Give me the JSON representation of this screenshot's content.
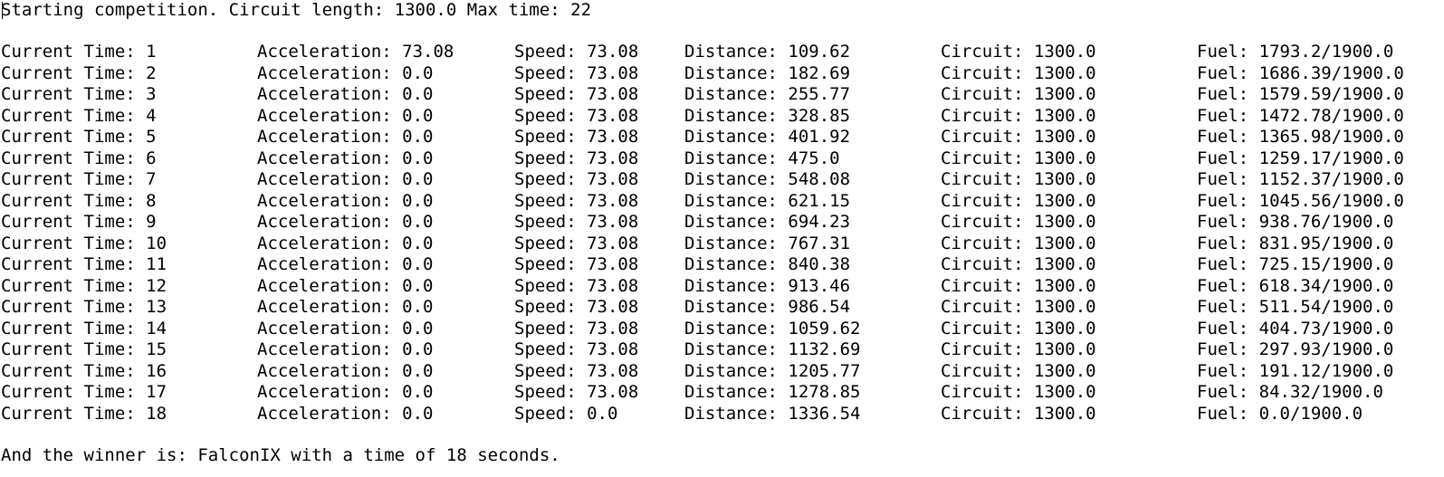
{
  "console": {
    "header": "Starting competition. Circuit length: 1300.0 Max time: 22",
    "footer": "And the winner is: FalconIX with a time of 18 seconds.",
    "rows": [
      {
        "time": "Current Time: 1",
        "acc": "Acceleration: 73.08",
        "speed": "Speed: 73.08",
        "dist": "Distance: 109.62",
        "circ": "Circuit: 1300.0",
        "fuel": "Fuel: 1793.2/1900.0"
      },
      {
        "time": "Current Time: 2",
        "acc": "Acceleration: 0.0",
        "speed": "Speed: 73.08",
        "dist": "Distance: 182.69",
        "circ": "Circuit: 1300.0",
        "fuel": "Fuel: 1686.39/1900.0"
      },
      {
        "time": "Current Time: 3",
        "acc": "Acceleration: 0.0",
        "speed": "Speed: 73.08",
        "dist": "Distance: 255.77",
        "circ": "Circuit: 1300.0",
        "fuel": "Fuel: 1579.59/1900.0"
      },
      {
        "time": "Current Time: 4",
        "acc": "Acceleration: 0.0",
        "speed": "Speed: 73.08",
        "dist": "Distance: 328.85",
        "circ": "Circuit: 1300.0",
        "fuel": "Fuel: 1472.78/1900.0"
      },
      {
        "time": "Current Time: 5",
        "acc": "Acceleration: 0.0",
        "speed": "Speed: 73.08",
        "dist": "Distance: 401.92",
        "circ": "Circuit: 1300.0",
        "fuel": "Fuel: 1365.98/1900.0"
      },
      {
        "time": "Current Time: 6",
        "acc": "Acceleration: 0.0",
        "speed": "Speed: 73.08",
        "dist": "Distance: 475.0",
        "circ": "Circuit: 1300.0",
        "fuel": "Fuel: 1259.17/1900.0"
      },
      {
        "time": "Current Time: 7",
        "acc": "Acceleration: 0.0",
        "speed": "Speed: 73.08",
        "dist": "Distance: 548.08",
        "circ": "Circuit: 1300.0",
        "fuel": "Fuel: 1152.37/1900.0"
      },
      {
        "time": "Current Time: 8",
        "acc": "Acceleration: 0.0",
        "speed": "Speed: 73.08",
        "dist": "Distance: 621.15",
        "circ": "Circuit: 1300.0",
        "fuel": "Fuel: 1045.56/1900.0"
      },
      {
        "time": "Current Time: 9",
        "acc": "Acceleration: 0.0",
        "speed": "Speed: 73.08",
        "dist": "Distance: 694.23",
        "circ": "Circuit: 1300.0",
        "fuel": "Fuel: 938.76/1900.0"
      },
      {
        "time": "Current Time: 10",
        "acc": "Acceleration: 0.0",
        "speed": "Speed: 73.08",
        "dist": "Distance: 767.31",
        "circ": "Circuit: 1300.0",
        "fuel": "Fuel: 831.95/1900.0"
      },
      {
        "time": "Current Time: 11",
        "acc": "Acceleration: 0.0",
        "speed": "Speed: 73.08",
        "dist": "Distance: 840.38",
        "circ": "Circuit: 1300.0",
        "fuel": "Fuel: 725.15/1900.0"
      },
      {
        "time": "Current Time: 12",
        "acc": "Acceleration: 0.0",
        "speed": "Speed: 73.08",
        "dist": "Distance: 913.46",
        "circ": "Circuit: 1300.0",
        "fuel": "Fuel: 618.34/1900.0"
      },
      {
        "time": "Current Time: 13",
        "acc": "Acceleration: 0.0",
        "speed": "Speed: 73.08",
        "dist": "Distance: 986.54",
        "circ": "Circuit: 1300.0",
        "fuel": "Fuel: 511.54/1900.0"
      },
      {
        "time": "Current Time: 14",
        "acc": "Acceleration: 0.0",
        "speed": "Speed: 73.08",
        "dist": "Distance: 1059.62",
        "circ": "Circuit: 1300.0",
        "fuel": "Fuel: 404.73/1900.0"
      },
      {
        "time": "Current Time: 15",
        "acc": "Acceleration: 0.0",
        "speed": "Speed: 73.08",
        "dist": "Distance: 1132.69",
        "circ": "Circuit: 1300.0",
        "fuel": "Fuel: 297.93/1900.0"
      },
      {
        "time": "Current Time: 16",
        "acc": "Acceleration: 0.0",
        "speed": "Speed: 73.08",
        "dist": "Distance: 1205.77",
        "circ": "Circuit: 1300.0",
        "fuel": "Fuel: 191.12/1900.0"
      },
      {
        "time": "Current Time: 17",
        "acc": "Acceleration: 0.0",
        "speed": "Speed: 73.08",
        "dist": "Distance: 1278.85",
        "circ": "Circuit: 1300.0",
        "fuel": "Fuel: 84.32/1900.0"
      },
      {
        "time": "Current Time: 18",
        "acc": "Acceleration: 0.0",
        "speed": "Speed: 0.0",
        "dist": "Distance: 1336.54",
        "circ": "Circuit: 1300.0",
        "fuel": "Fuel: 0.0/1900.0"
      }
    ]
  },
  "colors": {
    "background": "#ffffff",
    "text": "#000000"
  }
}
